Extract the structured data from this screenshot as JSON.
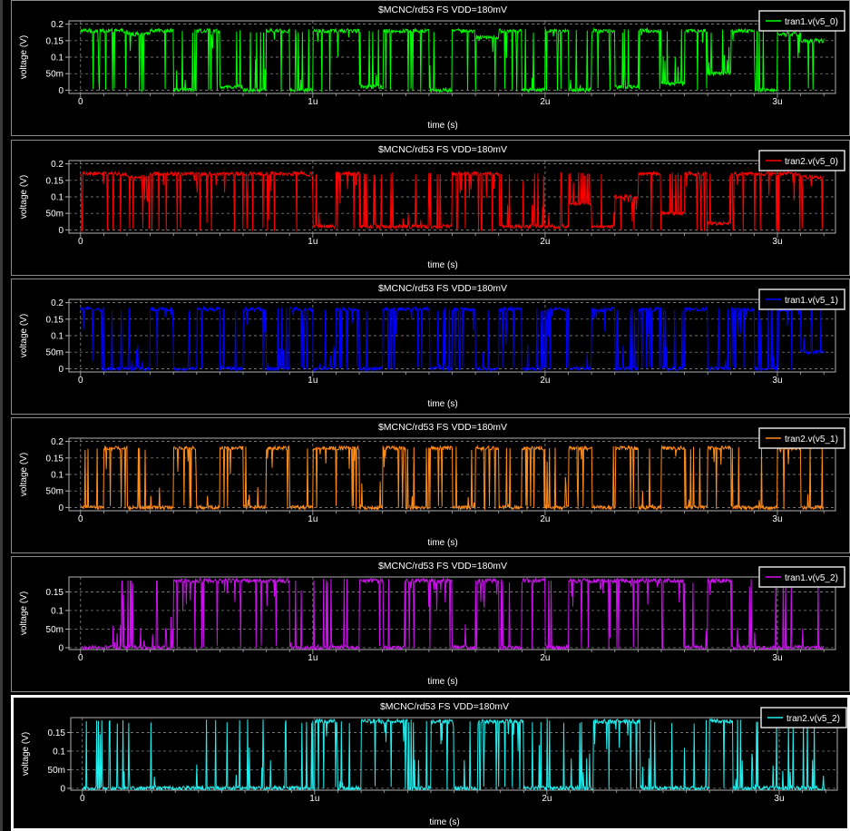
{
  "colors": {
    "background": "#000000",
    "grid": "#9a9a9a",
    "axis": "#b0b0b0",
    "text": "#ffffff"
  },
  "chart_data": [
    {
      "type": "line",
      "title": "$MCNC/rd53 FS VDD=180mV",
      "xlabel": "time (s)",
      "ylabel": "voltage (V)",
      "xlim": [
        -0.05,
        3.25
      ],
      "ylim": [
        -0.01,
        0.21
      ],
      "xticks": [
        "0",
        "1u",
        "2u",
        "3u"
      ],
      "yticks": [
        "0",
        "50m",
        "0.1",
        "0.15",
        "0.2"
      ],
      "grid": true,
      "legend_position": "top-right",
      "series": [
        {
          "name": "tran1.v(v5_0)",
          "color": "#00ff00",
          "x": [
            0,
            0.1,
            0.2,
            0.3,
            0.4,
            0.5,
            0.6,
            0.7,
            0.8,
            0.9,
            1.0,
            1.1,
            1.2,
            1.3,
            1.4,
            1.5,
            1.6,
            1.7,
            1.8,
            1.9,
            2.0,
            2.1,
            2.2,
            2.3,
            2.4,
            2.5,
            2.6,
            2.7,
            2.8,
            2.9,
            3.0,
            3.1,
            3.2
          ],
          "values": [
            0.18,
            0.18,
            0.17,
            0.18,
            0.0,
            0.18,
            0.01,
            0.0,
            0.18,
            0.0,
            0.18,
            0.18,
            0.01,
            0.18,
            0.18,
            0.0,
            0.18,
            0.16,
            0.18,
            0.0,
            0.18,
            0.0,
            0.18,
            0.01,
            0.18,
            0.02,
            0.18,
            0.05,
            0.18,
            0.0,
            0.17,
            0.15,
            0.14
          ]
        }
      ]
    },
    {
      "type": "line",
      "title": "$MCNC/rd53 FS VDD=180mV",
      "xlabel": "time (s)",
      "ylabel": "voltage (V)",
      "xlim": [
        -0.05,
        3.25
      ],
      "ylim": [
        -0.01,
        0.21
      ],
      "xticks": [
        "0",
        "1u",
        "2u",
        "3u"
      ],
      "yticks": [
        "0",
        "50m",
        "0.1",
        "0.15",
        "0.2"
      ],
      "grid": true,
      "legend_position": "top-right",
      "series": [
        {
          "name": "tran2.v(v5_0)",
          "color": "#ff0000",
          "x": [
            0,
            0.1,
            0.2,
            0.3,
            0.4,
            0.5,
            0.6,
            0.7,
            0.8,
            0.9,
            1.0,
            1.1,
            1.2,
            1.3,
            1.4,
            1.5,
            1.6,
            1.7,
            1.8,
            1.9,
            2.0,
            2.1,
            2.2,
            2.3,
            2.4,
            2.5,
            2.6,
            2.7,
            2.8,
            2.9,
            3.0,
            3.1,
            3.2
          ],
          "values": [
            0.17,
            0.17,
            0.16,
            0.17,
            0.17,
            0.17,
            0.17,
            0.17,
            0.17,
            0.17,
            0.01,
            0.17,
            0.01,
            0.01,
            0.01,
            0.01,
            0.17,
            0.17,
            0.01,
            0.01,
            0.01,
            0.08,
            0.01,
            0.1,
            0.17,
            0.05,
            0.17,
            0.02,
            0.17,
            0.17,
            0.17,
            0.16,
            0.12
          ]
        }
      ]
    },
    {
      "type": "line",
      "title": "$MCNC/rd53 FS VDD=180mV",
      "xlabel": "time (s)",
      "ylabel": "voltage (V)",
      "xlim": [
        -0.05,
        3.25
      ],
      "ylim": [
        -0.01,
        0.21
      ],
      "xticks": [
        "0",
        "1u",
        "2u",
        "3u"
      ],
      "yticks": [
        "0",
        "50m",
        "0.1",
        "0.15",
        "0.2"
      ],
      "grid": true,
      "legend_position": "top-right",
      "series": [
        {
          "name": "tran1.v(v5_1)",
          "color": "#0000ff",
          "x": [
            0,
            0.1,
            0.2,
            0.3,
            0.4,
            0.5,
            0.6,
            0.7,
            0.8,
            0.9,
            1.0,
            1.1,
            1.2,
            1.3,
            1.4,
            1.5,
            1.6,
            1.7,
            1.8,
            1.9,
            2.0,
            2.1,
            2.2,
            2.3,
            2.4,
            2.5,
            2.6,
            2.7,
            2.8,
            2.9,
            3.0,
            3.1,
            3.2
          ],
          "values": [
            0.18,
            0.0,
            0.0,
            0.18,
            0.0,
            0.18,
            0.0,
            0.18,
            0.0,
            0.18,
            0.0,
            0.18,
            0.0,
            0.18,
            0.18,
            0.0,
            0.18,
            0.0,
            0.18,
            0.0,
            0.18,
            0.0,
            0.18,
            0.0,
            0.18,
            0.0,
            0.18,
            0.0,
            0.18,
            0.0,
            0.18,
            0.05,
            0.0
          ]
        }
      ]
    },
    {
      "type": "line",
      "title": "$MCNC/rd53 FS VDD=180mV",
      "xlabel": "time (s)",
      "ylabel": "voltage (V)",
      "xlim": [
        -0.05,
        3.25
      ],
      "ylim": [
        -0.01,
        0.21
      ],
      "xticks": [
        "0",
        "1u",
        "2u",
        "3u"
      ],
      "yticks": [
        "0",
        "50m",
        "0.1",
        "0.15",
        "0.2"
      ],
      "grid": true,
      "legend_position": "top-right",
      "series": [
        {
          "name": "tran2.v(v5_1)",
          "color": "#ff8c1a",
          "x": [
            0,
            0.1,
            0.2,
            0.3,
            0.4,
            0.5,
            0.6,
            0.7,
            0.8,
            0.9,
            1.0,
            1.1,
            1.2,
            1.3,
            1.4,
            1.5,
            1.6,
            1.7,
            1.8,
            1.9,
            2.0,
            2.1,
            2.2,
            2.3,
            2.4,
            2.5,
            2.6,
            2.7,
            2.8,
            2.9,
            3.0,
            3.1,
            3.2
          ],
          "values": [
            0.0,
            0.18,
            0.0,
            0.0,
            0.18,
            0.0,
            0.18,
            0.0,
            0.18,
            0.0,
            0.18,
            0.18,
            0.0,
            0.18,
            0.0,
            0.18,
            0.0,
            0.18,
            0.0,
            0.18,
            0.0,
            0.18,
            0.0,
            0.18,
            0.0,
            0.18,
            0.0,
            0.18,
            0.0,
            0.0,
            0.18,
            0.0,
            0.0
          ]
        }
      ]
    },
    {
      "type": "line",
      "title": "$MCNC/rd53 FS VDD=180mV",
      "xlabel": "time (s)",
      "ylabel": "voltage (V)",
      "xlim": [
        -0.05,
        3.25
      ],
      "ylim": [
        -0.005,
        0.19
      ],
      "xticks": [
        "0",
        "1u",
        "2u",
        "3u"
      ],
      "yticks": [
        "0",
        "50m",
        "0.1",
        "0.15"
      ],
      "grid": true,
      "legend_position": "top-right",
      "series": [
        {
          "name": "tran1.v(v5_2)",
          "color": "#cc11ee",
          "x": [
            0,
            0.1,
            0.2,
            0.3,
            0.4,
            0.5,
            0.6,
            0.7,
            0.8,
            0.9,
            1.0,
            1.1,
            1.2,
            1.3,
            1.4,
            1.5,
            1.6,
            1.7,
            1.8,
            1.9,
            2.0,
            2.1,
            2.2,
            2.3,
            2.4,
            2.5,
            2.6,
            2.7,
            2.8,
            2.9,
            3.0,
            3.1,
            3.2
          ],
          "values": [
            0.0,
            0.0,
            0.0,
            0.0,
            0.18,
            0.18,
            0.18,
            0.18,
            0.18,
            0.0,
            0.0,
            0.0,
            0.18,
            0.0,
            0.18,
            0.18,
            0.0,
            0.18,
            0.0,
            0.18,
            0.0,
            0.18,
            0.18,
            0.18,
            0.18,
            0.18,
            0.0,
            0.18,
            0.0,
            0.0,
            0.0,
            0.0,
            0.0
          ]
        }
      ]
    },
    {
      "type": "line",
      "title": "$MCNC/rd53 FS VDD=180mV",
      "xlabel": "time (s)",
      "ylabel": "voltage (V)",
      "xlim": [
        -0.05,
        3.25
      ],
      "ylim": [
        -0.005,
        0.19
      ],
      "xticks": [
        "0",
        "1u",
        "2u",
        "3u"
      ],
      "yticks": [
        "0",
        "50m",
        "0.1",
        "0.15"
      ],
      "grid": true,
      "legend_position": "top-right",
      "series": [
        {
          "name": "tran2.v(v5_2)",
          "color": "#22eeee",
          "x": [
            0,
            0.1,
            0.2,
            0.3,
            0.4,
            0.5,
            0.6,
            0.7,
            0.8,
            0.9,
            1.0,
            1.1,
            1.2,
            1.3,
            1.4,
            1.5,
            1.6,
            1.7,
            1.8,
            1.9,
            2.0,
            2.1,
            2.2,
            2.3,
            2.4,
            2.5,
            2.6,
            2.7,
            2.8,
            2.9,
            3.0,
            3.1,
            3.2
          ],
          "values": [
            0.0,
            0.0,
            0.0,
            0.0,
            0.0,
            0.0,
            0.0,
            0.0,
            0.0,
            0.0,
            0.18,
            0.0,
            0.18,
            0.18,
            0.0,
            0.18,
            0.0,
            0.18,
            0.18,
            0.0,
            0.0,
            0.0,
            0.18,
            0.18,
            0.0,
            0.0,
            0.0,
            0.18,
            0.0,
            0.0,
            0.0,
            0.0,
            0.0
          ]
        }
      ]
    }
  ]
}
